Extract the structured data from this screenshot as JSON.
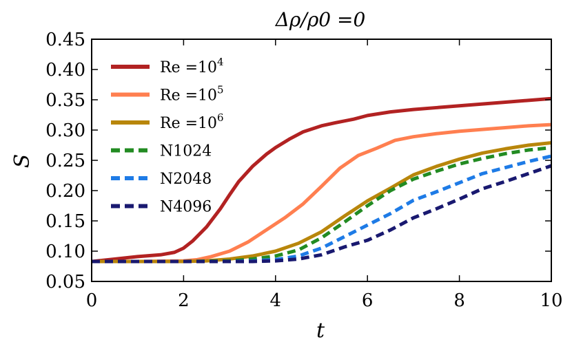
{
  "chart_data": {
    "type": "line",
    "title": "Δρ/ρ0 =0",
    "xlabel": "t",
    "ylabel": "S",
    "xlim": [
      0,
      10
    ],
    "ylim": [
      0.05,
      0.45
    ],
    "x_ticks": [
      0,
      2,
      4,
      6,
      8,
      10
    ],
    "x_tick_labels": [
      "0",
      "2",
      "4",
      "6",
      "8",
      "10"
    ],
    "y_ticks": [
      0.05,
      0.1,
      0.15,
      0.2,
      0.25,
      0.3,
      0.35,
      0.4,
      0.45
    ],
    "y_tick_labels": [
      "0.05",
      "0.10",
      "0.15",
      "0.20",
      "0.25",
      "0.30",
      "0.35",
      "0.40",
      "0.45"
    ],
    "grid": false,
    "legend_position": "top-left",
    "series": [
      {
        "name": "Re=10^4",
        "label_base": "Re =10",
        "label_sup": "4",
        "color": "#b22222",
        "style": "solid",
        "x": [
          0,
          0.5,
          1,
          1.5,
          1.8,
          2.0,
          2.2,
          2.5,
          2.8,
          3.0,
          3.2,
          3.5,
          3.8,
          4.0,
          4.3,
          4.6,
          5.0,
          5.3,
          5.7,
          6.0,
          6.5,
          7.0,
          7.5,
          8.0,
          8.5,
          9.0,
          9.5,
          10.0
        ],
        "y": [
          0.083,
          0.087,
          0.091,
          0.094,
          0.098,
          0.105,
          0.117,
          0.14,
          0.17,
          0.193,
          0.215,
          0.24,
          0.26,
          0.271,
          0.285,
          0.297,
          0.307,
          0.312,
          0.318,
          0.324,
          0.33,
          0.334,
          0.337,
          0.34,
          0.343,
          0.346,
          0.349,
          0.352
        ]
      },
      {
        "name": "Re=10^5",
        "label_base": "Re =10",
        "label_sup": "5",
        "color": "#ff7f50",
        "style": "solid",
        "x": [
          0,
          1,
          2,
          2.3,
          2.6,
          3.0,
          3.4,
          3.8,
          4.2,
          4.6,
          5.0,
          5.4,
          5.8,
          6.2,
          6.6,
          7.0,
          7.5,
          8.0,
          8.5,
          9.0,
          9.5,
          10.0
        ],
        "y": [
          0.083,
          0.083,
          0.084,
          0.086,
          0.091,
          0.1,
          0.115,
          0.135,
          0.155,
          0.178,
          0.207,
          0.237,
          0.258,
          0.27,
          0.283,
          0.289,
          0.294,
          0.298,
          0.301,
          0.304,
          0.307,
          0.309
        ]
      },
      {
        "name": "Re=10^6",
        "label_base": "Re =10",
        "label_sup": "6",
        "color": "#b8860b",
        "style": "solid",
        "x": [
          0,
          1,
          2,
          2.5,
          3.0,
          3.5,
          4.0,
          4.5,
          5.0,
          5.5,
          6.0,
          6.5,
          7.0,
          7.5,
          8.0,
          8.5,
          9.0,
          9.5,
          10.0
        ],
        "y": [
          0.083,
          0.083,
          0.083,
          0.084,
          0.087,
          0.092,
          0.1,
          0.113,
          0.132,
          0.158,
          0.183,
          0.204,
          0.226,
          0.24,
          0.252,
          0.262,
          0.269,
          0.275,
          0.279
        ]
      },
      {
        "name": "N1024",
        "label_base": "N1024",
        "label_sup": "",
        "color": "#228b22",
        "style": "dashed",
        "x": [
          0,
          1,
          2,
          3,
          3.5,
          4.0,
          4.5,
          5.0,
          5.5,
          6.0,
          6.5,
          7.0,
          7.5,
          8.0,
          8.5,
          9.0,
          9.5,
          10.0
        ],
        "y": [
          0.083,
          0.083,
          0.083,
          0.084,
          0.087,
          0.092,
          0.102,
          0.122,
          0.148,
          0.175,
          0.2,
          0.219,
          0.232,
          0.244,
          0.253,
          0.261,
          0.267,
          0.271
        ]
      },
      {
        "name": "N2048",
        "label_base": "N2048",
        "label_sup": "",
        "color": "#1e7be6",
        "style": "dashed",
        "x": [
          0,
          1,
          2,
          3,
          3.5,
          4.0,
          4.5,
          5.0,
          5.5,
          6.0,
          6.5,
          7.0,
          7.5,
          8.0,
          8.5,
          9.0,
          9.5,
          10.0
        ],
        "y": [
          0.083,
          0.083,
          0.083,
          0.083,
          0.084,
          0.086,
          0.092,
          0.105,
          0.124,
          0.143,
          0.162,
          0.184,
          0.198,
          0.213,
          0.228,
          0.238,
          0.248,
          0.257
        ]
      },
      {
        "name": "N4096",
        "label_base": "N4096",
        "label_sup": "",
        "color": "#191970",
        "style": "dashed",
        "x": [
          0,
          1,
          2,
          3,
          3.5,
          4.0,
          4.5,
          5.0,
          5.5,
          6.0,
          6.5,
          7.0,
          7.5,
          8.0,
          8.5,
          9.0,
          9.5,
          10.0
        ],
        "y": [
          0.083,
          0.083,
          0.083,
          0.083,
          0.083,
          0.084,
          0.087,
          0.094,
          0.107,
          0.118,
          0.135,
          0.155,
          0.17,
          0.186,
          0.203,
          0.215,
          0.228,
          0.241
        ]
      }
    ]
  }
}
